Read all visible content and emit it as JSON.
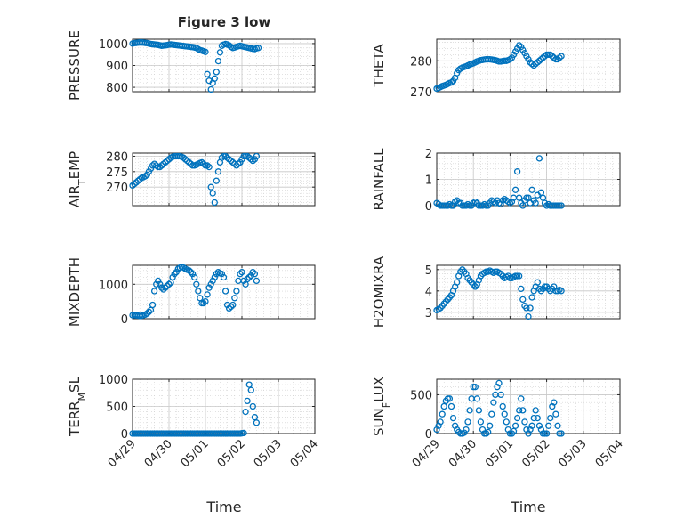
{
  "figure": {
    "title": "Figure 3 low",
    "marker_color": "#0072bd",
    "x_tick_labels": [
      "04/29",
      "04/30",
      "05/01",
      "05/02",
      "05/03",
      "05/04"
    ],
    "x_label": "Time"
  },
  "chart_data": [
    {
      "type": "scatter",
      "ylabel": "PRESSURE",
      "ylim": [
        780,
        1020
      ],
      "yticks": [
        800,
        900,
        1000
      ],
      "grid": true,
      "x": [
        0,
        0.05,
        0.1,
        0.15,
        0.2,
        0.25,
        0.3,
        0.35,
        0.4,
        0.45,
        0.5,
        0.55,
        0.6,
        0.65,
        0.7,
        0.75,
        0.8,
        0.85,
        0.9,
        0.95,
        1,
        1.05,
        1.1,
        1.15,
        1.2,
        1.25,
        1.3,
        1.35,
        1.4,
        1.45,
        1.5,
        1.55,
        1.6,
        1.65,
        1.7,
        1.75,
        1.8,
        1.85,
        1.9,
        1.95,
        2,
        2.05,
        2.1,
        2.15,
        2.2,
        2.25,
        2.3,
        2.35,
        2.4,
        2.45,
        2.5,
        2.55,
        2.6,
        2.65,
        2.7,
        2.75,
        2.8,
        2.85,
        2.9,
        2.95,
        3,
        3.05,
        3.1,
        3.15,
        3.2,
        3.25,
        3.3,
        3.35,
        3.4,
        3.45
      ],
      "y": [
        1000,
        1002,
        1003,
        1004,
        1005,
        1005,
        1004,
        1003,
        1002,
        1000,
        998,
        997,
        996,
        995,
        994,
        992,
        990,
        991,
        992,
        993,
        995,
        996,
        995,
        994,
        993,
        992,
        991,
        990,
        989,
        988,
        987,
        986,
        985,
        984,
        982,
        980,
        975,
        970,
        968,
        965,
        962,
        860,
        830,
        790,
        820,
        840,
        870,
        920,
        960,
        990,
        995,
        998,
        996,
        992,
        985,
        980,
        982,
        985,
        988,
        990,
        988,
        986,
        984,
        982,
        980,
        978,
        976,
        975,
        978,
        980
      ]
    },
    {
      "type": "scatter",
      "ylabel": "THETA",
      "ylim": [
        270,
        287
      ],
      "yticks": [
        270,
        280
      ],
      "grid": true,
      "x": [
        0,
        0.05,
        0.1,
        0.15,
        0.2,
        0.25,
        0.3,
        0.35,
        0.4,
        0.45,
        0.5,
        0.55,
        0.6,
        0.65,
        0.7,
        0.75,
        0.8,
        0.85,
        0.9,
        0.95,
        1,
        1.05,
        1.1,
        1.15,
        1.2,
        1.25,
        1.3,
        1.35,
        1.4,
        1.45,
        1.5,
        1.55,
        1.6,
        1.65,
        1.7,
        1.75,
        1.8,
        1.85,
        1.9,
        1.95,
        2,
        2.05,
        2.1,
        2.15,
        2.2,
        2.25,
        2.3,
        2.35,
        2.4,
        2.45,
        2.5,
        2.55,
        2.6,
        2.65,
        2.7,
        2.75,
        2.8,
        2.85,
        2.9,
        2.95,
        3,
        3.05,
        3.1,
        3.15,
        3.2,
        3.25,
        3.3,
        3.35,
        3.4
      ],
      "y": [
        271,
        271.2,
        271.5,
        271.8,
        272,
        272.2,
        272.5,
        272.8,
        273,
        273.5,
        274.5,
        276,
        277,
        277.5,
        277.8,
        278,
        278.2,
        278.5,
        278.8,
        279,
        279.2,
        279.5,
        279.8,
        280,
        280.2,
        280.3,
        280.4,
        280.5,
        280.5,
        280.5,
        280.4,
        280.3,
        280.2,
        280,
        279.8,
        279.8,
        279.9,
        280,
        280,
        280.2,
        280.5,
        281,
        282,
        283,
        284,
        285,
        284.5,
        283.5,
        282.5,
        281.5,
        280.5,
        279.5,
        279,
        278.5,
        279,
        279.5,
        280,
        280.5,
        281,
        281.5,
        282,
        282,
        282,
        281.5,
        281,
        280.5,
        280.5,
        281,
        281.5
      ]
    },
    {
      "type": "scatter",
      "ylabel": "AIR_TEMP",
      "ylim": [
        264,
        281
      ],
      "yticks": [
        270,
        275,
        280
      ],
      "grid": true,
      "x": [
        0,
        0.05,
        0.1,
        0.15,
        0.2,
        0.25,
        0.3,
        0.35,
        0.4,
        0.45,
        0.5,
        0.55,
        0.6,
        0.65,
        0.7,
        0.75,
        0.8,
        0.85,
        0.9,
        0.95,
        1,
        1.05,
        1.1,
        1.15,
        1.2,
        1.25,
        1.3,
        1.35,
        1.4,
        1.45,
        1.5,
        1.55,
        1.6,
        1.65,
        1.7,
        1.75,
        1.8,
        1.85,
        1.9,
        1.95,
        2,
        2.05,
        2.1,
        2.15,
        2.2,
        2.25,
        2.3,
        2.35,
        2.4,
        2.45,
        2.5,
        2.55,
        2.6,
        2.65,
        2.7,
        2.75,
        2.8,
        2.85,
        2.9,
        2.95,
        3,
        3.05,
        3.1,
        3.15,
        3.2,
        3.25,
        3.3,
        3.35,
        3.4
      ],
      "y": [
        270.5,
        271,
        271.5,
        272,
        272.5,
        273,
        273.2,
        273.5,
        274,
        275,
        276,
        277,
        277.5,
        277,
        276.5,
        276.5,
        277,
        277.5,
        278,
        278.5,
        279,
        279.5,
        279.8,
        280,
        280,
        280,
        280,
        279.8,
        279.5,
        279,
        278.5,
        278,
        277.5,
        277,
        277,
        277.2,
        277.5,
        277.8,
        278,
        277.5,
        277,
        277,
        276.5,
        270,
        268,
        265,
        272,
        275,
        278,
        279.5,
        280,
        280,
        279.5,
        279,
        278.5,
        278,
        277.5,
        277,
        277.5,
        278,
        279,
        280,
        280,
        280,
        279.5,
        279,
        278.5,
        279,
        280
      ]
    },
    {
      "type": "scatter",
      "ylabel": "RAINFALL",
      "ylim": [
        0,
        2
      ],
      "yticks": [
        0,
        1,
        2
      ],
      "grid": true,
      "x": [
        0,
        0.05,
        0.1,
        0.15,
        0.2,
        0.25,
        0.3,
        0.35,
        0.4,
        0.45,
        0.5,
        0.55,
        0.6,
        0.65,
        0.7,
        0.75,
        0.8,
        0.85,
        0.9,
        0.95,
        1,
        1.05,
        1.1,
        1.15,
        1.2,
        1.25,
        1.3,
        1.35,
        1.4,
        1.45,
        1.5,
        1.55,
        1.6,
        1.65,
        1.7,
        1.75,
        1.8,
        1.85,
        1.9,
        1.95,
        2,
        2.05,
        2.1,
        2.15,
        2.2,
        2.25,
        2.3,
        2.35,
        2.4,
        2.45,
        2.5,
        2.55,
        2.6,
        2.65,
        2.7,
        2.75,
        2.8,
        2.85,
        2.9,
        2.95,
        3,
        3.05,
        3.1,
        3.15,
        3.2,
        3.25,
        3.3,
        3.35,
        3.4
      ],
      "y": [
        0.1,
        0.05,
        0,
        0,
        0,
        0,
        0,
        0.05,
        0,
        0,
        0.15,
        0.2,
        0.1,
        0.1,
        0,
        0,
        0,
        0.05,
        0,
        0,
        0.1,
        0.15,
        0.1,
        0,
        0,
        0,
        0.05,
        0,
        0,
        0.1,
        0.2,
        0.15,
        0.1,
        0.2,
        0.1,
        0.05,
        0.2,
        0.25,
        0.2,
        0.15,
        0.1,
        0.15,
        0.3,
        0.6,
        1.3,
        0.3,
        0.1,
        0,
        0.2,
        0.3,
        0.3,
        0.1,
        0.6,
        0.2,
        0.1,
        0.4,
        1.8,
        0.5,
        0.3,
        0.1,
        0,
        0.05,
        0,
        0,
        0,
        0,
        0,
        0,
        0
      ]
    },
    {
      "type": "scatter",
      "ylabel": "MIXDEPTH",
      "ylim": [
        0,
        1550
      ],
      "yticks": [
        0,
        1000
      ],
      "grid": true,
      "x": [
        0,
        0.05,
        0.1,
        0.15,
        0.2,
        0.25,
        0.3,
        0.35,
        0.4,
        0.45,
        0.5,
        0.55,
        0.6,
        0.65,
        0.7,
        0.75,
        0.8,
        0.85,
        0.9,
        0.95,
        1,
        1.05,
        1.1,
        1.15,
        1.2,
        1.25,
        1.3,
        1.35,
        1.4,
        1.45,
        1.5,
        1.55,
        1.6,
        1.65,
        1.7,
        1.75,
        1.8,
        1.85,
        1.9,
        1.95,
        2,
        2.05,
        2.1,
        2.15,
        2.2,
        2.25,
        2.3,
        2.35,
        2.4,
        2.45,
        2.5,
        2.55,
        2.6,
        2.65,
        2.7,
        2.75,
        2.8,
        2.85,
        2.9,
        2.95,
        3,
        3.05,
        3.1,
        3.15,
        3.2,
        3.25,
        3.3,
        3.35,
        3.4
      ],
      "y": [
        100,
        100,
        95,
        90,
        80,
        85,
        100,
        120,
        150,
        200,
        250,
        400,
        800,
        1000,
        1100,
        1000,
        900,
        850,
        900,
        950,
        1000,
        1050,
        1200,
        1300,
        1350,
        1450,
        1480,
        1500,
        1480,
        1450,
        1420,
        1400,
        1350,
        1300,
        1200,
        1000,
        800,
        600,
        450,
        450,
        500,
        700,
        900,
        1000,
        1100,
        1200,
        1300,
        1350,
        1320,
        1300,
        1200,
        800,
        400,
        300,
        350,
        400,
        600,
        800,
        1100,
        1300,
        1350,
        1100,
        1000,
        1150,
        1200,
        1250,
        1350,
        1300,
        1100
      ]
    },
    {
      "type": "scatter",
      "ylabel": "H2OMIXRA",
      "ylim": [
        2.7,
        5.2
      ],
      "yticks": [
        3,
        4,
        5
      ],
      "grid": true,
      "x": [
        0,
        0.05,
        0.1,
        0.15,
        0.2,
        0.25,
        0.3,
        0.35,
        0.4,
        0.45,
        0.5,
        0.55,
        0.6,
        0.65,
        0.7,
        0.75,
        0.8,
        0.85,
        0.9,
        0.95,
        1,
        1.05,
        1.1,
        1.15,
        1.2,
        1.25,
        1.3,
        1.35,
        1.4,
        1.45,
        1.5,
        1.55,
        1.6,
        1.65,
        1.7,
        1.75,
        1.8,
        1.85,
        1.9,
        1.95,
        2,
        2.05,
        2.1,
        2.15,
        2.2,
        2.25,
        2.3,
        2.35,
        2.4,
        2.45,
        2.5,
        2.55,
        2.6,
        2.65,
        2.7,
        2.75,
        2.8,
        2.85,
        2.9,
        2.95,
        3,
        3.05,
        3.1,
        3.15,
        3.2,
        3.25,
        3.3,
        3.35,
        3.4
      ],
      "y": [
        3.1,
        3.15,
        3.2,
        3.3,
        3.4,
        3.5,
        3.6,
        3.7,
        3.8,
        4,
        4.2,
        4.4,
        4.7,
        4.9,
        5,
        4.9,
        4.8,
        4.6,
        4.5,
        4.4,
        4.3,
        4.2,
        4.3,
        4.5,
        4.7,
        4.8,
        4.85,
        4.9,
        4.9,
        4.95,
        4.9,
        4.85,
        4.9,
        4.9,
        4.85,
        4.8,
        4.7,
        4.6,
        4.65,
        4.7,
        4.6,
        4.6,
        4.65,
        4.7,
        4.7,
        4.7,
        4.1,
        3.6,
        3.3,
        3.2,
        2.8,
        3.2,
        3.7,
        4,
        4.2,
        4.4,
        4.1,
        4,
        4.1,
        4.2,
        4.2,
        4.1,
        4,
        4.1,
        4.2,
        4,
        4,
        4.05,
        4
      ]
    },
    {
      "type": "scatter",
      "ylabel": "TERR_MSL",
      "ylim": [
        0,
        1000
      ],
      "yticks": [
        0,
        500,
        1000
      ],
      "grid": true,
      "x": [
        0,
        0.05,
        0.1,
        0.15,
        0.2,
        0.25,
        0.3,
        0.35,
        0.4,
        0.45,
        0.5,
        0.55,
        0.6,
        0.65,
        0.7,
        0.75,
        0.8,
        0.85,
        0.9,
        0.95,
        1,
        1.05,
        1.1,
        1.15,
        1.2,
        1.25,
        1.3,
        1.35,
        1.4,
        1.45,
        1.5,
        1.55,
        1.6,
        1.65,
        1.7,
        1.75,
        1.8,
        1.85,
        1.9,
        1.95,
        2,
        2.05,
        2.1,
        2.15,
        2.2,
        2.25,
        2.3,
        2.35,
        2.4,
        2.45,
        2.5,
        2.55,
        2.6,
        2.65,
        2.7,
        2.75,
        2.8,
        2.85,
        2.9,
        2.95,
        3,
        3.05,
        3.1,
        3.15,
        3.2,
        3.25,
        3.3,
        3.35,
        3.4
      ],
      "y": [
        0,
        0,
        0,
        0,
        0,
        0,
        0,
        0,
        0,
        0,
        0,
        0,
        0,
        0,
        0,
        0,
        0,
        0,
        0,
        0,
        0,
        0,
        0,
        0,
        0,
        0,
        0,
        0,
        0,
        0,
        0,
        0,
        0,
        0,
        0,
        0,
        0,
        0,
        0,
        0,
        0,
        0,
        0,
        0,
        0,
        0,
        0,
        0,
        0,
        0,
        0,
        0,
        0,
        0,
        0,
        0,
        0,
        0,
        0,
        0,
        5,
        10,
        400,
        600,
        900,
        800,
        500,
        300,
        200
      ]
    },
    {
      "type": "scatter",
      "ylabel": "SUN_FLUX",
      "ylim": [
        0,
        700
      ],
      "yticks": [
        0,
        500
      ],
      "grid": true,
      "x": [
        0,
        0.05,
        0.1,
        0.15,
        0.2,
        0.25,
        0.3,
        0.35,
        0.4,
        0.45,
        0.5,
        0.55,
        0.6,
        0.65,
        0.7,
        0.75,
        0.8,
        0.85,
        0.9,
        0.95,
        1,
        1.05,
        1.1,
        1.15,
        1.2,
        1.25,
        1.3,
        1.35,
        1.4,
        1.45,
        1.5,
        1.55,
        1.6,
        1.65,
        1.7,
        1.75,
        1.8,
        1.85,
        1.9,
        1.95,
        2,
        2.05,
        2.1,
        2.15,
        2.2,
        2.25,
        2.3,
        2.35,
        2.4,
        2.45,
        2.5,
        2.55,
        2.6,
        2.65,
        2.7,
        2.75,
        2.8,
        2.85,
        2.9,
        2.95,
        3,
        3.05,
        3.1,
        3.15,
        3.2,
        3.25,
        3.3,
        3.35,
        3.4
      ],
      "y": [
        50,
        100,
        150,
        250,
        350,
        420,
        450,
        450,
        350,
        200,
        100,
        50,
        20,
        0,
        0,
        10,
        50,
        150,
        300,
        450,
        600,
        600,
        450,
        300,
        150,
        50,
        0,
        0,
        20,
        100,
        250,
        400,
        500,
        600,
        650,
        500,
        350,
        250,
        150,
        50,
        0,
        0,
        30,
        100,
        200,
        300,
        450,
        300,
        150,
        50,
        0,
        50,
        100,
        200,
        300,
        200,
        100,
        50,
        0,
        0,
        0,
        100,
        200,
        350,
        400,
        250,
        100,
        0,
        0
      ]
    }
  ]
}
